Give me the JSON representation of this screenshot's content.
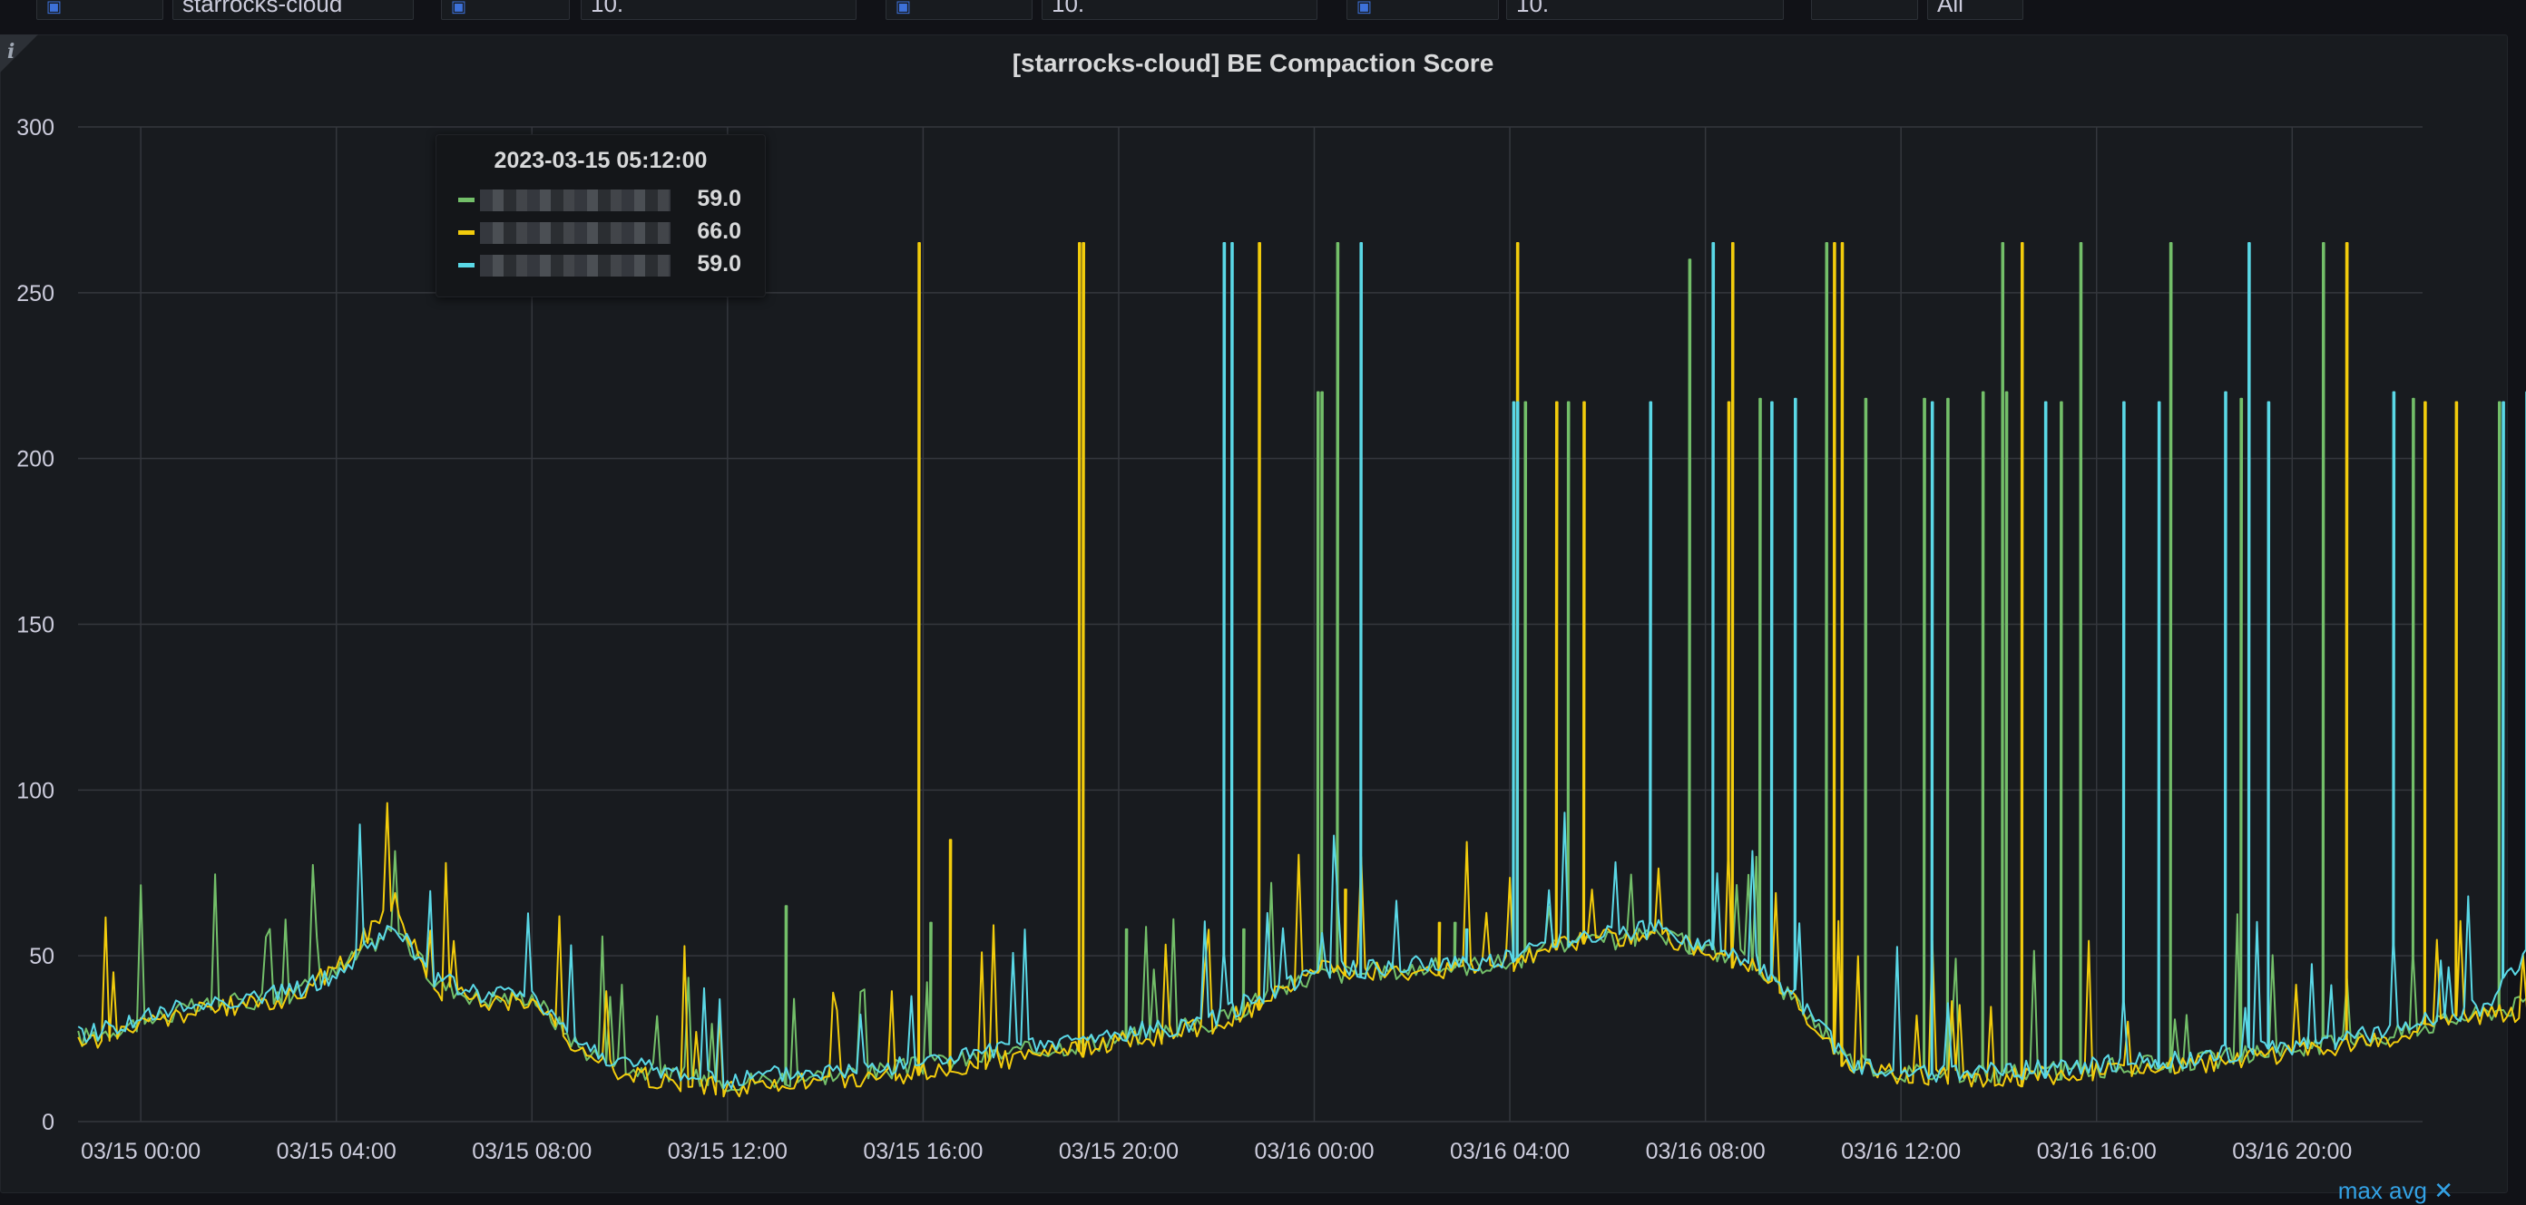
{
  "topbar": {
    "segments": [
      "starrocks-cloud",
      "10.",
      "10.",
      "10.",
      "All"
    ]
  },
  "panel": {
    "title": "[starrocks-cloud] BE Compaction Score",
    "info_icon": "info-icon",
    "legend_hint": "max  avg ✕"
  },
  "tooltip": {
    "time": "2023-03-15 05:12:00",
    "rows": [
      {
        "color": "#73bf69",
        "value": "59.0"
      },
      {
        "color": "#f2cc0c",
        "value": "66.0"
      },
      {
        "color": "#5ad8e6",
        "value": "59.0"
      }
    ]
  },
  "chart_data": {
    "type": "line",
    "title": "[starrocks-cloud] BE Compaction Score",
    "xlabel": "",
    "ylabel": "",
    "ylim": [
      0,
      300
    ],
    "y_ticks": [
      0,
      50,
      100,
      150,
      200,
      250,
      300
    ],
    "x_range": [
      "2023-03-14 22:43",
      "2023-03-16 22:40"
    ],
    "x_ticks": [
      "03/15 00:00",
      "03/15 04:00",
      "03/15 08:00",
      "03/15 12:00",
      "03/15 16:00",
      "03/15 20:00",
      "03/16 00:00",
      "03/16 04:00",
      "03/16 08:00",
      "03/16 12:00",
      "03/16 16:00",
      "03/16 20:00"
    ],
    "grid": true,
    "series": [
      {
        "color": "#73bf69",
        "baseline": [
          [
            -1.28,
            25
          ],
          [
            0,
            30
          ],
          [
            1,
            34
          ],
          [
            3,
            38
          ],
          [
            4,
            45
          ],
          [
            5.2,
            59
          ],
          [
            6,
            42
          ],
          [
            7,
            37
          ],
          [
            8,
            38
          ],
          [
            9,
            22
          ],
          [
            10,
            16
          ],
          [
            12,
            12
          ],
          [
            13,
            13
          ],
          [
            15,
            15
          ],
          [
            16,
            17
          ],
          [
            18,
            21
          ],
          [
            20,
            25
          ],
          [
            22,
            30
          ],
          [
            23,
            38
          ],
          [
            24,
            44
          ],
          [
            26,
            46
          ],
          [
            28,
            48
          ],
          [
            29,
            53
          ],
          [
            31,
            56
          ],
          [
            32,
            52
          ],
          [
            33,
            48
          ],
          [
            34,
            34
          ],
          [
            35,
            18
          ],
          [
            36,
            15
          ],
          [
            38,
            14
          ],
          [
            40,
            16
          ],
          [
            42,
            18
          ],
          [
            44,
            22
          ],
          [
            46,
            26
          ],
          [
            47,
            30
          ],
          [
            48,
            33
          ],
          [
            48.95,
            36
          ]
        ],
        "spikes": [
          [
            13.2,
            65
          ],
          [
            16.1,
            60
          ],
          [
            20.1,
            58
          ],
          [
            22.5,
            58
          ],
          [
            24.05,
            220
          ],
          [
            24.15,
            220
          ],
          [
            24.45,
            265
          ],
          [
            26.8,
            60
          ],
          [
            28.3,
            217
          ],
          [
            29.15,
            217
          ],
          [
            31.6,
            260
          ],
          [
            33.1,
            218
          ],
          [
            34.4,
            265
          ],
          [
            35.2,
            218
          ],
          [
            35.25,
            218
          ],
          [
            36.4,
            218
          ],
          [
            36.9,
            218
          ],
          [
            37.6,
            220
          ],
          [
            38.05,
            265
          ],
          [
            38.15,
            220
          ],
          [
            39.2,
            217
          ],
          [
            39.6,
            265
          ],
          [
            41.5,
            265
          ],
          [
            42.9,
            218
          ],
          [
            44.6,
            265
          ],
          [
            46.4,
            218
          ],
          [
            48.2,
            217
          ]
        ]
      },
      {
        "color": "#f2cc0c",
        "baseline": [
          [
            -1.28,
            23
          ],
          [
            0,
            29
          ],
          [
            1,
            33
          ],
          [
            3,
            37
          ],
          [
            4,
            46
          ],
          [
            5.2,
            66
          ],
          [
            6,
            40
          ],
          [
            7,
            36
          ],
          [
            8,
            37
          ],
          [
            9,
            20
          ],
          [
            10,
            14
          ],
          [
            12,
            10
          ],
          [
            13,
            11
          ],
          [
            15,
            13
          ],
          [
            16,
            15
          ],
          [
            18,
            19
          ],
          [
            20,
            24
          ],
          [
            22,
            29
          ],
          [
            23,
            36
          ],
          [
            24,
            46
          ],
          [
            26,
            45
          ],
          [
            28,
            47
          ],
          [
            29,
            54
          ],
          [
            31,
            57
          ],
          [
            32,
            51
          ],
          [
            33,
            47
          ],
          [
            34,
            33
          ],
          [
            35,
            16
          ],
          [
            36,
            14
          ],
          [
            38,
            13
          ],
          [
            40,
            15
          ],
          [
            42,
            17
          ],
          [
            44,
            21
          ],
          [
            46,
            25
          ],
          [
            47,
            29
          ],
          [
            48,
            33
          ],
          [
            48.95,
            32
          ]
        ],
        "spikes": [
          [
            15.85,
            265
          ],
          [
            16.55,
            85
          ],
          [
            19.15,
            265
          ],
          [
            19.25,
            265
          ],
          [
            22.85,
            265
          ],
          [
            24.6,
            70
          ],
          [
            26.5,
            60
          ],
          [
            28.1,
            265
          ],
          [
            28.9,
            217
          ],
          [
            29.45,
            217
          ],
          [
            32.4,
            217
          ],
          [
            32.5,
            265
          ],
          [
            34.6,
            265
          ],
          [
            34.75,
            265
          ],
          [
            38.4,
            265
          ],
          [
            45.1,
            265
          ],
          [
            46.7,
            217
          ],
          [
            47.3,
            217
          ],
          [
            48.8,
            217
          ]
        ]
      },
      {
        "color": "#5ad8e6",
        "baseline": [
          [
            -1.28,
            26
          ],
          [
            0,
            31
          ],
          [
            1,
            35
          ],
          [
            3,
            39
          ],
          [
            4,
            44
          ],
          [
            5.2,
            59
          ],
          [
            6,
            43
          ],
          [
            7,
            38
          ],
          [
            8,
            39
          ],
          [
            9,
            23
          ],
          [
            10,
            17
          ],
          [
            12,
            12
          ],
          [
            13,
            14
          ],
          [
            15,
            16
          ],
          [
            16,
            18
          ],
          [
            18,
            22
          ],
          [
            20,
            26
          ],
          [
            22,
            31
          ],
          [
            23,
            39
          ],
          [
            24,
            45
          ],
          [
            26,
            47
          ],
          [
            28,
            49
          ],
          [
            29,
            55
          ],
          [
            31,
            58
          ],
          [
            32,
            53
          ],
          [
            33,
            49
          ],
          [
            34,
            35
          ],
          [
            35,
            17
          ],
          [
            36,
            14
          ],
          [
            38,
            15
          ],
          [
            40,
            17
          ],
          [
            42,
            19
          ],
          [
            44,
            23
          ],
          [
            46,
            27
          ],
          [
            47,
            31
          ],
          [
            48,
            35
          ],
          [
            48.95,
            54
          ]
        ],
        "spikes": [
          [
            22.1,
            265
          ],
          [
            22.3,
            265
          ],
          [
            24.9,
            265
          ],
          [
            27.1,
            58
          ],
          [
            28.0,
            217
          ],
          [
            28.1,
            217
          ],
          [
            30.8,
            217
          ],
          [
            32.1,
            265
          ],
          [
            33.3,
            217
          ],
          [
            33.8,
            218
          ],
          [
            36.6,
            217
          ],
          [
            38.9,
            217
          ],
          [
            40.5,
            217
          ],
          [
            41.2,
            217
          ],
          [
            42.6,
            220
          ],
          [
            43.1,
            265
          ],
          [
            43.5,
            217
          ],
          [
            46.0,
            220
          ],
          [
            48.3,
            217
          ],
          [
            48.75,
            220
          ]
        ]
      }
    ]
  }
}
